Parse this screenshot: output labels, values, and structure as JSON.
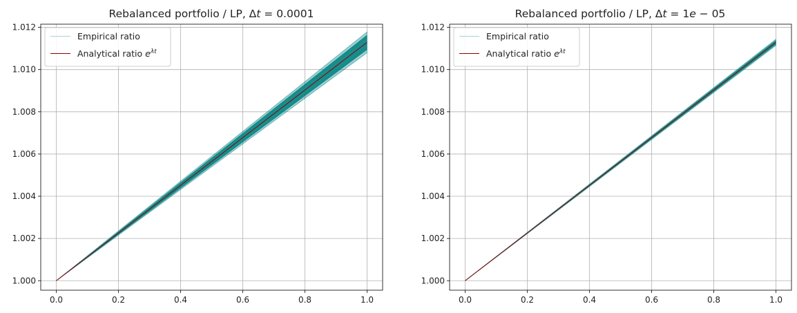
{
  "chart_data": [
    {
      "type": "line",
      "title": "Rebalanced portfolio / LP, Δt = 0.0001",
      "title_parts": {
        "text": "Rebalanced portfolio / LP, ",
        "delta": "Δ",
        "t": "t",
        "eq": " = 0.0001"
      },
      "xlabel": "",
      "ylabel": "",
      "xlim": [
        -0.05,
        1.05
      ],
      "ylim": [
        0.99955,
        1.01215
      ],
      "xticks": [
        "0.0",
        "0.2",
        "0.4",
        "0.6",
        "0.8",
        "1.0"
      ],
      "yticks": [
        "1.000",
        "1.002",
        "1.004",
        "1.006",
        "1.008",
        "1.010",
        "1.012"
      ],
      "grid": true,
      "legend_location": "upper-left",
      "series": [
        {
          "name": "Empirical ratio",
          "color": "#008080",
          "x": [
            0,
            1
          ],
          "y_center": [
            1.0,
            1.01129
          ],
          "y_spread_at_end": 0.0005
        },
        {
          "name": "Analytical ratio e^{λt}",
          "color": "#8b0000",
          "x": [
            0,
            1
          ],
          "y": [
            1.0,
            1.01129
          ]
        }
      ]
    },
    {
      "type": "line",
      "title": "Rebalanced portfolio / LP, Δt = 1e − 05",
      "title_parts": {
        "text": "Rebalanced portfolio / LP, ",
        "delta": "Δ",
        "t": "t",
        "eq": " = 1",
        "e": "e",
        "rest": " − 05"
      },
      "xlabel": "",
      "ylabel": "",
      "xlim": [
        -0.05,
        1.05
      ],
      "ylim": [
        0.99955,
        1.01215
      ],
      "xticks": [
        "0.0",
        "0.2",
        "0.4",
        "0.6",
        "0.8",
        "1.0"
      ],
      "yticks": [
        "1.000",
        "1.002",
        "1.004",
        "1.006",
        "1.008",
        "1.010",
        "1.012"
      ],
      "grid": true,
      "legend_location": "upper-left",
      "series": [
        {
          "name": "Empirical ratio",
          "color": "#008080",
          "x": [
            0,
            1
          ],
          "y_center": [
            1.0,
            1.01129
          ],
          "y_spread_at_end": 0.00015
        },
        {
          "name": "Analytical ratio e^{λt}",
          "color": "#8b0000",
          "x": [
            0,
            1
          ],
          "y": [
            1.0,
            1.01129
          ]
        }
      ]
    }
  ],
  "legend": {
    "empirical_label": "Empirical ratio",
    "analytical_label_text": "Analytical ratio ",
    "analytical_label_base": "e",
    "analytical_label_exp": "λt"
  },
  "colors": {
    "empirical": "#008080",
    "analytical": "#8b0000",
    "grid": "#b0b0b0",
    "axes": "#000000"
  }
}
